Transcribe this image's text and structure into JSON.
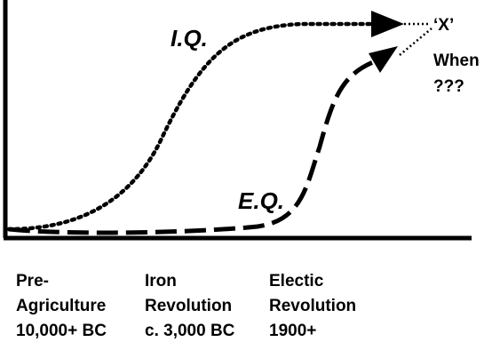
{
  "chart_data": {
    "type": "line",
    "title": "",
    "xlabel": "",
    "ylabel": "",
    "grid": false,
    "series": [
      {
        "name": "I.Q.",
        "style": "dotted",
        "trend": "S-curve rising early, then plateau, ending in arrow",
        "level": [
          0.03,
          0.06,
          0.15,
          0.35,
          0.62,
          0.82,
          0.9,
          0.91,
          0.91,
          0.91
        ]
      },
      {
        "name": "E.Q.",
        "style": "dashed",
        "trend": "flat near baseline, then steep rise, ending in arrow",
        "level": [
          0.03,
          0.02,
          0.02,
          0.02,
          0.03,
          0.06,
          0.12,
          0.35,
          0.66,
          0.8
        ]
      }
    ],
    "end_label": [
      "‘X’",
      "When",
      "???"
    ],
    "eras": [
      {
        "lines": [
          "Pre-",
          "Agriculture",
          "10,000+ BC"
        ]
      },
      {
        "lines": [
          "Iron",
          "Revolution",
          "c. 3,000 BC"
        ]
      },
      {
        "lines": [
          "Electic",
          "Revolution",
          "1900+"
        ]
      }
    ]
  }
}
